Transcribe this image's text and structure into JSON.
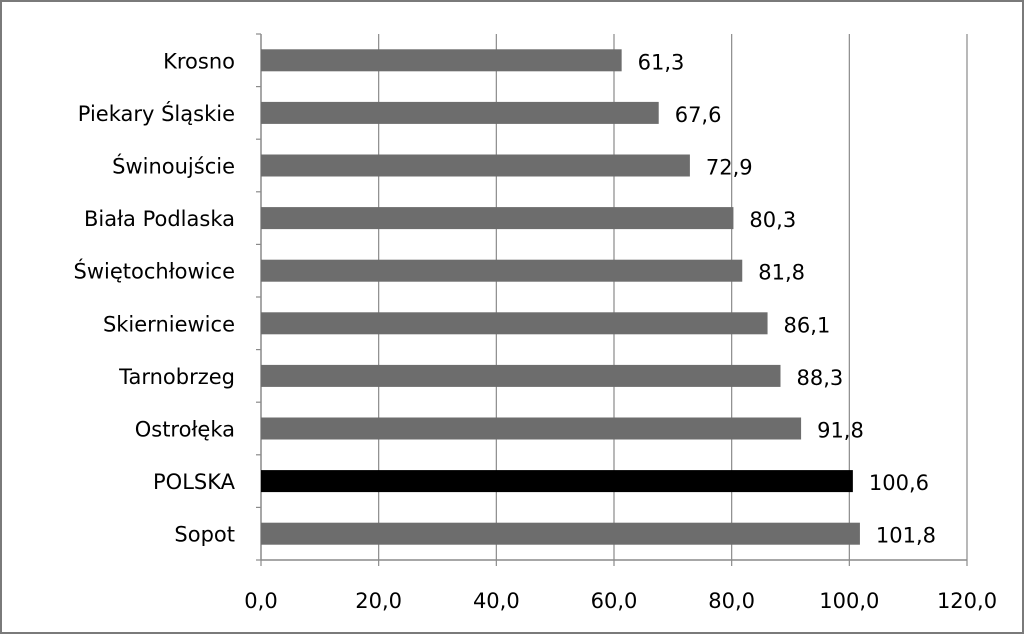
{
  "chart_data": {
    "type": "bar",
    "orientation": "horizontal",
    "title": "",
    "xlabel": "",
    "ylabel": "",
    "categories": [
      "Krosno",
      "Piekary Śląskie",
      "Świnoujście",
      "Biała Podlaska",
      "Świętochłowice",
      "Skierniewice",
      "Tarnobrzeg",
      "Ostrołęka",
      "POLSKA",
      "Sopot"
    ],
    "values": [
      61.3,
      67.6,
      72.9,
      80.3,
      81.8,
      86.1,
      88.3,
      91.8,
      100.6,
      101.8
    ],
    "value_labels": [
      "61,3",
      "67,6",
      "72,9",
      "80,3",
      "81,8",
      "86,1",
      "88,3",
      "91,8",
      "100,6",
      "101,8"
    ],
    "bar_colors": [
      "#6d6d6d",
      "#6d6d6d",
      "#6d6d6d",
      "#6d6d6d",
      "#6d6d6d",
      "#6d6d6d",
      "#6d6d6d",
      "#6d6d6d",
      "#000000",
      "#6d6d6d"
    ],
    "xlim": [
      0,
      120
    ],
    "xticks": [
      0,
      20,
      40,
      60,
      80,
      100,
      120
    ],
    "xtick_labels": [
      "0,0",
      "20,0",
      "40,0",
      "60,0",
      "80,0",
      "100,0",
      "120,0"
    ],
    "grid": "vertical",
    "legend": "none"
  }
}
